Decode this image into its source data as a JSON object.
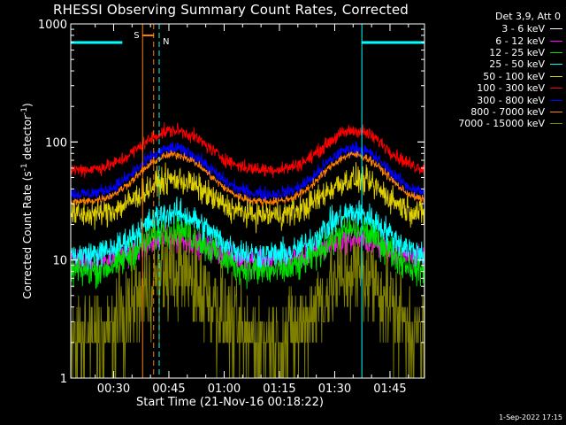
{
  "chart_data": {
    "type": "line",
    "title": "RHESSI Observing Summary Count Rates, Corrected",
    "xlabel": "Start Time (21-Nov-16 00:18:22)",
    "ylabel_parts": [
      "Corrected Count Rate (s",
      "-1",
      " detector",
      "-1",
      ")"
    ],
    "yscale": "log",
    "ylim": [
      1,
      1000
    ],
    "y_ticks": [
      1,
      10,
      100,
      1000
    ],
    "y_tick_labels": [
      "1",
      "10",
      "100",
      "1000"
    ],
    "x_ticks": [
      "00:30",
      "00:45",
      "01:00",
      "01:15",
      "01:30",
      "01:45"
    ],
    "legend_title": "Det 3,9, Att 0",
    "series": [
      {
        "name": "3 - 6 keV",
        "color": "#000000",
        "base": 22,
        "peak": 30,
        "noise": 0.09
      },
      {
        "name": "6 - 12 keV",
        "color": "#ff00ff",
        "base": 10,
        "peak": 15,
        "noise": 0.09
      },
      {
        "name": "12 - 25 keV",
        "color": "#00e000",
        "base": 8,
        "peak": 18,
        "noise": 0.12
      },
      {
        "name": "25 - 50 keV",
        "color": "#00ffff",
        "base": 11,
        "peak": 25,
        "noise": 0.1
      },
      {
        "name": "50 - 100 keV",
        "color": "#e0d000",
        "base": 24,
        "peak": 48,
        "noise": 0.1
      },
      {
        "name": "100 - 300 keV",
        "color": "#ff0000",
        "base": 58,
        "peak": 125,
        "noise": 0.05
      },
      {
        "name": "300 - 800 keV",
        "color": "#0000ff",
        "base": 36,
        "peak": 88,
        "noise": 0.05
      },
      {
        "name": "800 - 7000 keV",
        "color": "#ff8000",
        "base": 31,
        "peak": 78,
        "noise": 0.03
      },
      {
        "name": "7000 - 15000 keV",
        "color": "#808000",
        "base": 2,
        "peak": 8,
        "noise": 0.35
      }
    ],
    "time_range_minutes": [
      0,
      96
    ],
    "peaks_minutes": [
      28,
      77
    ],
    "markers": {
      "S": {
        "label": "S",
        "color": "#ff8000",
        "start": 19.5,
        "end": 22.5
      },
      "N": {
        "label": "N",
        "color": "#00ffff",
        "end": 24
      }
    },
    "night_bars": [
      {
        "start": 0,
        "end": 14,
        "color": "#00ffff"
      },
      {
        "start": 79,
        "end": 96,
        "color": "#00ffff"
      }
    ],
    "night_lines": [
      79,
      96
    ],
    "grid": false
  },
  "footer": {
    "timestamp": "1-Sep-2022 17:15"
  }
}
